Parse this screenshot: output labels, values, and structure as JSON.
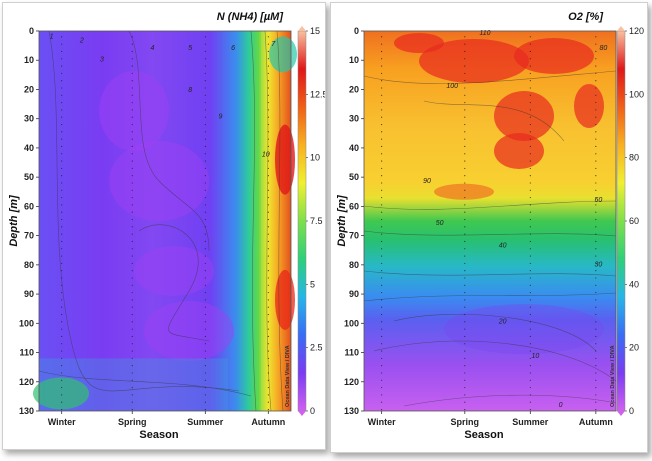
{
  "chart_data": [
    {
      "type": "heatmap",
      "title": "N (NH4) [µM]",
      "xlabel": "Season",
      "ylabel": "Depth [m]",
      "categories": [
        "Winter",
        "Spring",
        "Summer",
        "Autumn"
      ],
      "y_ticks": [
        0,
        10,
        20,
        30,
        40,
        50,
        60,
        70,
        80,
        90,
        100,
        110,
        120,
        130
      ],
      "ylim": [
        130,
        0
      ],
      "colorbar": {
        "min": 0,
        "max": 15,
        "ticks": [
          0,
          2.5,
          5,
          7.5,
          10,
          12.5,
          15
        ]
      },
      "contour_labels": [
        "1",
        "2",
        "3",
        "4",
        "5",
        "6",
        "7",
        "8",
        "9",
        "10"
      ],
      "watermark": "Ocean Data View / DIVA",
      "colormap": [
        "#d060f0",
        "#7a3cf2",
        "#3a6cf5",
        "#26b6e8",
        "#2ed07a",
        "#7ee04a",
        "#f0f030",
        "#f8b020",
        "#f06018",
        "#e01818",
        "#f8c0a0"
      ]
    },
    {
      "type": "heatmap",
      "title": "O2 [%]",
      "xlabel": "Season",
      "ylabel": "Depth [m]",
      "categories": [
        "Winter",
        "Spring",
        "Summer",
        "Autumn"
      ],
      "y_ticks": [
        0,
        10,
        20,
        30,
        40,
        50,
        60,
        70,
        80,
        90,
        100,
        110,
        120,
        130
      ],
      "ylim": [
        130,
        0
      ],
      "colorbar": {
        "min": 0,
        "max": 120,
        "ticks": [
          0,
          20,
          40,
          60,
          80,
          100,
          120
        ]
      },
      "contour_labels": [
        "0",
        "10",
        "20",
        "30",
        "40",
        "50",
        "60",
        "80",
        "90",
        "100",
        "110"
      ],
      "watermark": "Ocean Data View / DIVA",
      "colormap": [
        "#d060f0",
        "#7a3cf2",
        "#3a6cf5",
        "#26b6e8",
        "#2ed07a",
        "#7ee04a",
        "#f0f030",
        "#f8b020",
        "#f06018",
        "#e01818",
        "#f8c0a0"
      ]
    }
  ]
}
